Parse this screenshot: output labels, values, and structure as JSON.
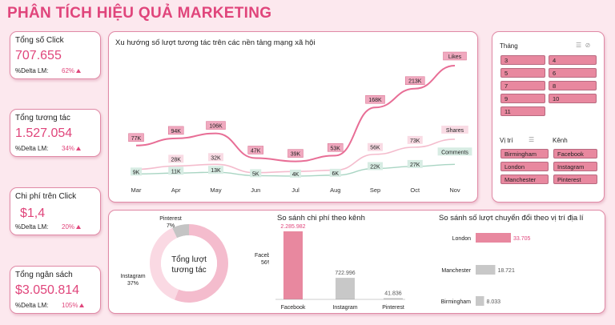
{
  "page_title": "PHÂN TÍCH HIỆU QUẢ MARKETING",
  "kpis": [
    {
      "label": "Tổng số Click",
      "value": "707.655",
      "delta_label": "%Delta LM:",
      "delta": "62%"
    },
    {
      "label": "Tổng tương tác",
      "value": "1.527.054",
      "delta_label": "%Delta LM:",
      "delta": "34%"
    },
    {
      "label": "Chi phí trên Click",
      "value": "$1,4",
      "delta_label": "%Delta LM:",
      "delta": "20%"
    },
    {
      "label": "Tổng ngân sách",
      "value": "$3.050.814",
      "delta_label": "%Delta LM:",
      "delta": "105%"
    }
  ],
  "colors": {
    "accent": "#e0457b",
    "likes": "#e86e96",
    "shares": "#f4bccd",
    "comments": "#a9d5c3",
    "bar_pink": "#e8889f",
    "bar_gray": "#c8c8c8",
    "chip": "#e8889f"
  },
  "chart_data": [
    {
      "type": "line",
      "title": "Xu hướng số lượt tương tác trên các nền tảng mạng xã hội",
      "categories": [
        "Mar",
        "Apr",
        "May",
        "Jun",
        "Jul",
        "Aug",
        "Sep",
        "Oct",
        "Nov"
      ],
      "series": [
        {
          "name": "Likes",
          "values": [
            77,
            94,
            106,
            47,
            39,
            53,
            168,
            213,
            268
          ],
          "labels": [
            "77K",
            "94K",
            "106K",
            "47K",
            "39K",
            "53K",
            "168K",
            "213K",
            ""
          ]
        },
        {
          "name": "Shares",
          "values": [
            20,
            28,
            32,
            12,
            15,
            18,
            56,
            73,
            92
          ],
          "labels": [
            "",
            "28K",
            "32K",
            "",
            "",
            "",
            "56K",
            "73K",
            ""
          ]
        },
        {
          "name": "Comments",
          "values": [
            9,
            11,
            13,
            5,
            4,
            6,
            22,
            27,
            32
          ],
          "labels": [
            "9K",
            "11K",
            "13K",
            "5K",
            "4K",
            "6K",
            "22K",
            "27K",
            ""
          ]
        }
      ]
    },
    {
      "type": "pie",
      "center_label": "Tổng lượt tương tác",
      "slices": [
        {
          "name": "Facebook",
          "value": 56,
          "label": "56%"
        },
        {
          "name": "Instagram",
          "value": 37,
          "label": "37%"
        },
        {
          "name": "Pinterest",
          "value": 7,
          "label": "7%"
        }
      ]
    },
    {
      "type": "bar",
      "title": "So sánh chi phí theo kênh",
      "categories": [
        "Facebook",
        "Instagram",
        "Pinterest"
      ],
      "values": [
        2285982,
        722996,
        41836
      ],
      "labels": [
        "2.285.982",
        "722.996",
        "41.836"
      ]
    },
    {
      "type": "bar",
      "orientation": "horizontal",
      "title": "So sánh số lượt chuyển đổi theo vị trí địa lí",
      "categories": [
        "London",
        "Manchester",
        "Birmingham"
      ],
      "values": [
        33705,
        18721,
        8033
      ],
      "labels": [
        "33.705",
        "18.721",
        "8.033"
      ]
    }
  ],
  "slicers": {
    "month": {
      "label": "Tháng",
      "items": [
        "3",
        "4",
        "5",
        "6",
        "7",
        "8",
        "9",
        "10",
        "11"
      ]
    },
    "location": {
      "label": "Vị trí",
      "items": [
        "Birmingham",
        "London",
        "Manchester"
      ]
    },
    "channel": {
      "label": "Kênh",
      "items": [
        "Facebook",
        "Instagram",
        "Pinterest"
      ]
    },
    "icons": [
      "multi-select-icon",
      "clear-filter-icon"
    ]
  }
}
